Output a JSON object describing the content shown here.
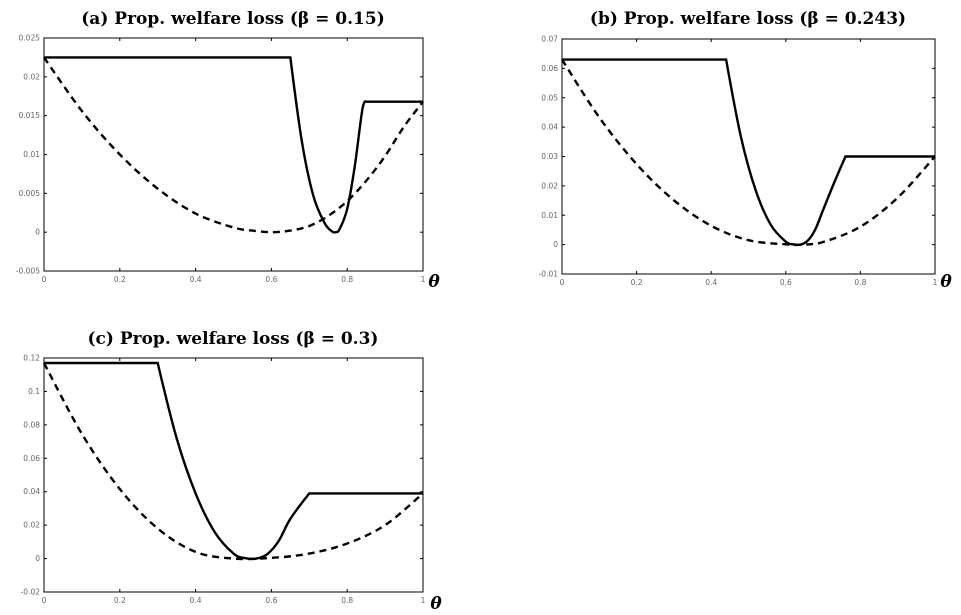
{
  "chart_data": [
    {
      "type": "line",
      "title": "(a) Prop. welfare loss (β = 0.15)",
      "xlabel": "θ",
      "xlim": [
        0,
        1
      ],
      "ylim": [
        -0.005,
        0.025
      ],
      "xticks": [
        "0",
        "0.2",
        "0.4",
        "0.6",
        "0.8",
        "1"
      ],
      "yticks": [
        "-0.005",
        "0",
        "0.005",
        "0.01",
        "0.015",
        "0.02",
        "0.025"
      ],
      "series": [
        {
          "style": "solid",
          "x": [
            0,
            0.2,
            0.4,
            0.65,
            0.68,
            0.71,
            0.74,
            0.76,
            0.77,
            0.78,
            0.8,
            0.82,
            0.84,
            0.85,
            0.88,
            0.92,
            1.0
          ],
          "y": [
            0.0225,
            0.0225,
            0.0225,
            0.0225,
            0.0118,
            0.0048,
            0.0012,
            0.0001,
            0.0,
            0.0004,
            0.003,
            0.0085,
            0.0158,
            0.0168,
            0.0168,
            0.0168,
            0.0168
          ]
        },
        {
          "style": "dashed",
          "x": [
            0,
            0.1,
            0.2,
            0.3,
            0.4,
            0.5,
            0.55,
            0.6,
            0.65,
            0.7,
            0.75,
            0.8,
            0.85,
            0.9,
            0.95,
            1.0
          ],
          "y": [
            0.0225,
            0.0156,
            0.01,
            0.0056,
            0.0024,
            0.0006,
            0.0002,
            0.0,
            0.0002,
            0.0008,
            0.0021,
            0.004,
            0.0066,
            0.0098,
            0.0136,
            0.0168
          ]
        }
      ]
    },
    {
      "type": "line",
      "title": "(b) Prop. welfare loss (β = 0.243)",
      "xlabel": "θ",
      "xlim": [
        0,
        1
      ],
      "ylim": [
        -0.01,
        0.07
      ],
      "xticks": [
        "0",
        "0.2",
        "0.4",
        "0.6",
        "0.8",
        "1"
      ],
      "yticks": [
        "-0.01",
        "0",
        "0.01",
        "0.02",
        "0.03",
        "0.04",
        "0.05",
        "0.06",
        "0.07"
      ],
      "series": [
        {
          "style": "solid",
          "x": [
            0,
            0.2,
            0.44,
            0.48,
            0.52,
            0.56,
            0.6,
            0.62,
            0.64,
            0.66,
            0.68,
            0.7,
            0.73,
            0.76,
            0.85,
            1.0
          ],
          "y": [
            0.063,
            0.063,
            0.063,
            0.0365,
            0.0182,
            0.0067,
            0.001,
            0.0001,
            0.0,
            0.0015,
            0.0054,
            0.0118,
            0.0212,
            0.03,
            0.03,
            0.03
          ]
        },
        {
          "style": "dashed",
          "x": [
            0,
            0.1,
            0.2,
            0.3,
            0.4,
            0.5,
            0.6,
            0.64,
            0.7,
            0.8,
            0.9,
            1.0
          ],
          "y": [
            0.063,
            0.0433,
            0.0274,
            0.0151,
            0.0064,
            0.0015,
            0.0001,
            0.0,
            0.0009,
            0.0061,
            0.016,
            0.03
          ]
        }
      ]
    },
    {
      "type": "line",
      "title": "(c) Prop. welfare loss (β = 0.3)",
      "xlabel": "θ",
      "xlim": [
        0,
        1
      ],
      "ylim": [
        -0.02,
        0.12
      ],
      "xticks": [
        "0",
        "0.2",
        "0.4",
        "0.6",
        "0.8",
        "1"
      ],
      "yticks": [
        "-0.02",
        "0",
        "0.02",
        "0.04",
        "0.06",
        "0.08",
        "0.1",
        "0.12"
      ],
      "series": [
        {
          "style": "solid",
          "x": [
            0,
            0.15,
            0.3,
            0.35,
            0.4,
            0.45,
            0.5,
            0.53,
            0.56,
            0.59,
            0.62,
            0.65,
            0.7,
            0.8,
            1.0
          ],
          "y": [
            0.117,
            0.117,
            0.117,
            0.072,
            0.039,
            0.016,
            0.003,
            0.0003,
            0.0,
            0.0028,
            0.0108,
            0.0238,
            0.039,
            0.039,
            0.039
          ]
        },
        {
          "style": "dashed",
          "x": [
            0,
            0.1,
            0.2,
            0.3,
            0.4,
            0.5,
            0.6,
            0.7,
            0.8,
            0.9,
            1.0
          ],
          "y": [
            0.117,
            0.0746,
            0.0416,
            0.018,
            0.004,
            0.0,
            0.0004,
            0.003,
            0.009,
            0.02,
            0.039
          ]
        }
      ]
    }
  ]
}
